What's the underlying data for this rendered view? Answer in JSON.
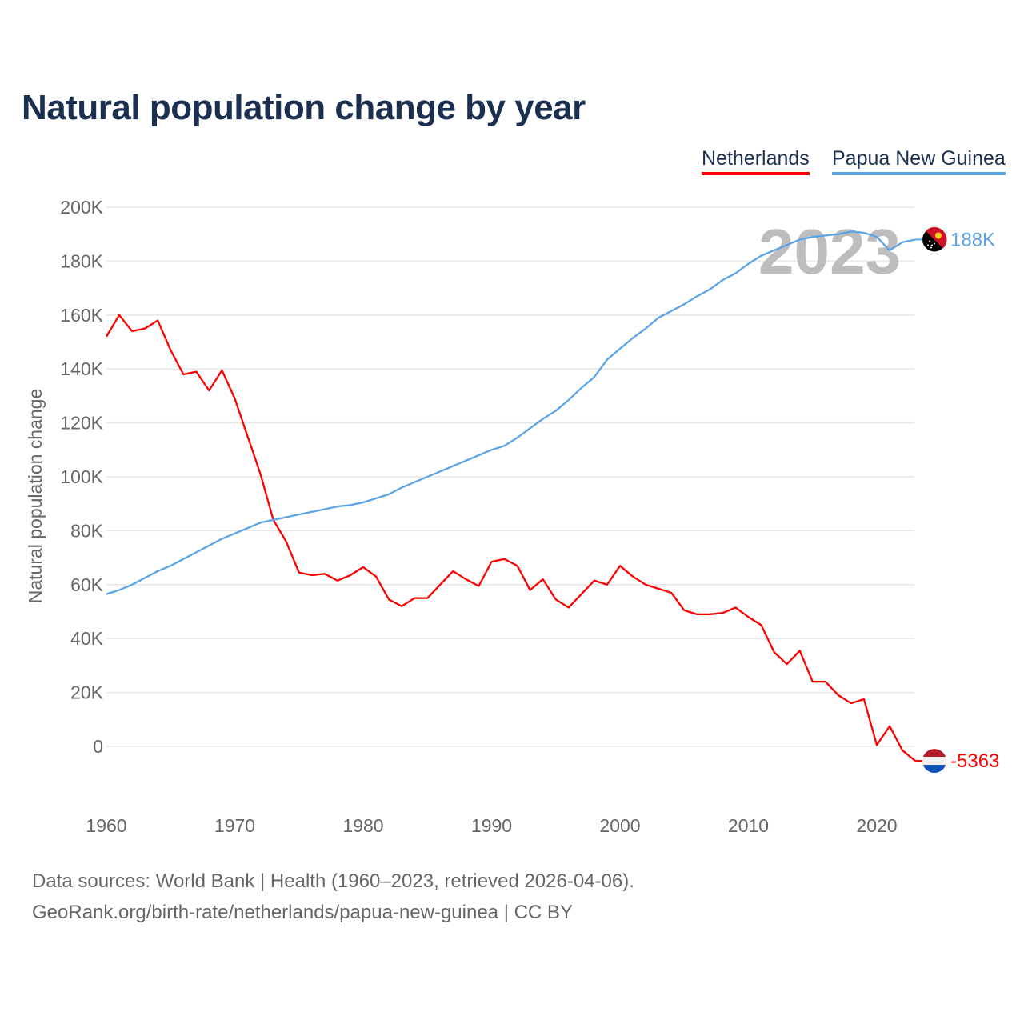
{
  "title": "Natural population change by year",
  "legend": [
    {
      "label": "Netherlands",
      "color": "#ff0000"
    },
    {
      "label": "Papua New Guinea",
      "color": "#5ba4e8"
    }
  ],
  "year_watermark": "2023",
  "footer": {
    "line1": "Data sources: World Bank | Health (1960–2023, retrieved 2026-04-06).",
    "line2": "GeoRank.org/birth-rate/netherlands/papua-new-guinea | CC BY"
  },
  "chart_data": {
    "type": "line",
    "title": "Natural population change by year",
    "xlabel": "",
    "ylabel": "Natural population change",
    "xlim": [
      1960,
      2023
    ],
    "ylim": [
      -20000,
      200000
    ],
    "grid": true,
    "legend_position": "top-right",
    "x_ticks": [
      1960,
      1970,
      1980,
      1990,
      2000,
      2010,
      2020
    ],
    "y_ticks": [
      0,
      20000,
      40000,
      60000,
      80000,
      100000,
      120000,
      140000,
      160000,
      180000,
      200000
    ],
    "y_tick_labels": [
      "0",
      "20K",
      "40K",
      "60K",
      "80K",
      "100K",
      "120K",
      "140K",
      "160K",
      "180K",
      "200K"
    ],
    "x": [
      1960,
      1961,
      1962,
      1963,
      1964,
      1965,
      1966,
      1967,
      1968,
      1969,
      1970,
      1971,
      1972,
      1973,
      1974,
      1975,
      1976,
      1977,
      1978,
      1979,
      1980,
      1981,
      1982,
      1983,
      1984,
      1985,
      1986,
      1987,
      1988,
      1989,
      1990,
      1991,
      1992,
      1993,
      1994,
      1995,
      1996,
      1997,
      1998,
      1999,
      2000,
      2001,
      2002,
      2003,
      2004,
      2005,
      2006,
      2007,
      2008,
      2009,
      2010,
      2011,
      2012,
      2013,
      2014,
      2015,
      2016,
      2017,
      2018,
      2019,
      2020,
      2021,
      2022,
      2023
    ],
    "series": [
      {
        "name": "Netherlands",
        "color": "#ff0000",
        "end_label": "-5363",
        "values": [
          152000,
          160000,
          154000,
          155000,
          158000,
          147000,
          138000,
          139000,
          132000,
          139500,
          129000,
          115000,
          101000,
          84000,
          76000,
          64500,
          63500,
          64000,
          61500,
          63500,
          66500,
          63000,
          54500,
          52000,
          55000,
          55000,
          60000,
          65000,
          62000,
          59500,
          68500,
          69500,
          67000,
          58000,
          62000,
          54500,
          51500,
          56500,
          61500,
          60000,
          67000,
          63000,
          60000,
          58500,
          57000,
          50500,
          49000,
          49000,
          49500,
          51500,
          48000,
          45000,
          35000,
          30500,
          35500,
          24000,
          24000,
          19000,
          16000,
          17500,
          500,
          7500,
          -1500,
          -5363
        ]
      },
      {
        "name": "Papua New Guinea",
        "color": "#5ba4e8",
        "end_label": "188K",
        "values": [
          56500,
          58000,
          60000,
          62500,
          65000,
          67000,
          69500,
          72000,
          74500,
          77000,
          79000,
          81000,
          83000,
          84000,
          85000,
          86000,
          87000,
          88000,
          89000,
          89500,
          90500,
          92000,
          93500,
          96000,
          98000,
          100000,
          102000,
          104000,
          106000,
          108000,
          110000,
          111500,
          114500,
          118000,
          121500,
          124500,
          128500,
          133000,
          137000,
          143500,
          147500,
          151500,
          155000,
          159000,
          161500,
          164000,
          167000,
          169500,
          173000,
          175500,
          179000,
          182000,
          184000,
          186000,
          188000,
          189000,
          189500,
          190000,
          191000,
          190500,
          189000,
          184000,
          187000,
          188000
        ]
      }
    ]
  }
}
